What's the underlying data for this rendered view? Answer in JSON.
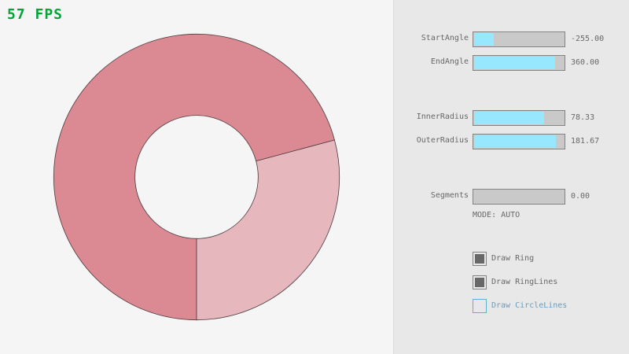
{
  "fps": "57 FPS",
  "ring": {
    "center_label": "",
    "segments": [
      {
        "from_deg": 90,
        "to_deg": 345,
        "color": "#db8a93"
      },
      {
        "from_deg": -15,
        "to_deg": 90,
        "color": "#e6b7bd"
      }
    ],
    "outline": "#4a3a3c"
  },
  "sliders": [
    {
      "label": "StartAngle",
      "value": "-255.00",
      "fraction": 0.217
    },
    {
      "label": "EndAngle",
      "value": "360.00",
      "fraction": 0.9
    },
    {
      "label": "InnerRadius",
      "value": "78.33",
      "fraction": 0.783
    },
    {
      "label": "OuterRadius",
      "value": "181.67",
      "fraction": 0.908
    },
    {
      "label": "Segments",
      "value": "0.00",
      "fraction": 0
    }
  ],
  "mode": "MODE: AUTO",
  "checkboxes": [
    {
      "label": "Draw Ring",
      "checked": true
    },
    {
      "label": "Draw RingLines",
      "checked": true
    },
    {
      "label": "Draw CircleLines",
      "checked": false
    }
  ]
}
